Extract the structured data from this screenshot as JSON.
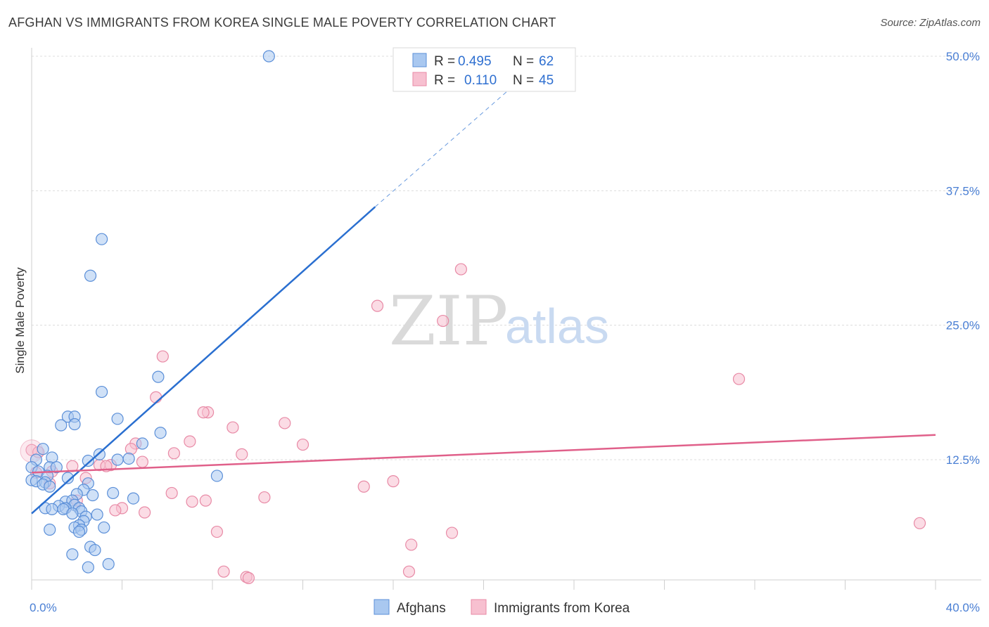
{
  "title": "AFGHAN VS IMMIGRANTS FROM KOREA SINGLE MALE POVERTY CORRELATION CHART",
  "source": "Source: ZipAtlas.com",
  "watermark": {
    "zip": "ZIP",
    "atlas": "atlas"
  },
  "colors": {
    "afghans_fill": "#a9c8f0",
    "afghans_stroke": "#5b8fd8",
    "afghans_line": "#2a6fd0",
    "korea_fill": "#f7c0d0",
    "korea_stroke": "#e88aa6",
    "korea_line": "#e0608a",
    "grid": "#dcdcdc",
    "tick_text": "#4a7fd4"
  },
  "legend": {
    "rows": [
      {
        "r_label": "R =",
        "r_value": "0.495",
        "n_label": "N =",
        "n_value": "62"
      },
      {
        "r_label": "R =",
        "r_value": "0.110",
        "n_label": "N =",
        "n_value": "45"
      }
    ]
  },
  "chart_data": {
    "type": "scatter",
    "title": "AFGHAN VS IMMIGRANTS FROM KOREA SINGLE MALE POVERTY CORRELATION CHART",
    "xlabel": "",
    "ylabel": "Single Male Poverty",
    "xlim": [
      0,
      40
    ],
    "ylim": [
      0,
      52
    ],
    "x_tick_labels": [
      "0.0%",
      "40.0%"
    ],
    "y_ticks": [
      12.5,
      25.0,
      37.5,
      50.0
    ],
    "y_tick_labels": [
      "12.5%",
      "25.0%",
      "37.5%",
      "50.0%"
    ],
    "grid": "horizontal dashed",
    "legend_position": "top-center",
    "series": [
      {
        "name": "Afghans",
        "r": 0.495,
        "n": 62,
        "trend": {
          "x0": 0,
          "y0": 7.5,
          "x1": 15.2,
          "y1": 36.0,
          "dashed_to_x": 22.0,
          "dashed_to_y": 48.5
        },
        "points": [
          [
            10.5,
            50.0
          ],
          [
            3.1,
            33.0
          ],
          [
            2.6,
            29.6
          ],
          [
            5.6,
            20.2
          ],
          [
            3.1,
            18.8
          ],
          [
            1.6,
            16.5
          ],
          [
            1.9,
            16.5
          ],
          [
            1.3,
            15.7
          ],
          [
            1.9,
            15.8
          ],
          [
            3.8,
            16.3
          ],
          [
            5.7,
            15.0
          ],
          [
            4.9,
            14.0
          ],
          [
            0.5,
            13.5
          ],
          [
            3.0,
            13.0
          ],
          [
            0.9,
            12.7
          ],
          [
            2.5,
            12.4
          ],
          [
            3.8,
            12.5
          ],
          [
            0.2,
            12.5
          ],
          [
            4.3,
            12.6
          ],
          [
            0.0,
            11.8
          ],
          [
            0.8,
            11.8
          ],
          [
            1.1,
            11.8
          ],
          [
            0.3,
            11.4
          ],
          [
            0.7,
            11.0
          ],
          [
            1.6,
            10.8
          ],
          [
            0.0,
            10.6
          ],
          [
            0.2,
            10.5
          ],
          [
            0.6,
            10.4
          ],
          [
            0.5,
            10.2
          ],
          [
            0.8,
            10.0
          ],
          [
            2.5,
            10.3
          ],
          [
            2.3,
            9.7
          ],
          [
            8.2,
            11.0
          ],
          [
            3.6,
            9.4
          ],
          [
            2.0,
            9.3
          ],
          [
            2.7,
            9.2
          ],
          [
            4.5,
            8.9
          ],
          [
            1.5,
            8.6
          ],
          [
            1.8,
            8.7
          ],
          [
            1.9,
            8.3
          ],
          [
            1.2,
            8.2
          ],
          [
            1.5,
            8.0
          ],
          [
            0.6,
            8.0
          ],
          [
            0.9,
            7.9
          ],
          [
            1.4,
            7.9
          ],
          [
            2.1,
            8.0
          ],
          [
            2.2,
            7.7
          ],
          [
            1.8,
            7.5
          ],
          [
            2.9,
            7.4
          ],
          [
            2.4,
            7.2
          ],
          [
            2.3,
            6.8
          ],
          [
            2.1,
            6.4
          ],
          [
            3.2,
            6.2
          ],
          [
            0.8,
            6.0
          ],
          [
            1.9,
            6.2
          ],
          [
            2.2,
            6.0
          ],
          [
            2.1,
            5.8
          ],
          [
            2.6,
            4.4
          ],
          [
            1.8,
            3.7
          ],
          [
            3.4,
            2.8
          ],
          [
            2.5,
            2.5
          ],
          [
            2.8,
            4.1
          ]
        ]
      },
      {
        "name": "Immigrants from Korea",
        "r": 0.11,
        "n": 45,
        "trend": {
          "x0": 0,
          "y0": 11.3,
          "x1": 40,
          "y1": 14.8
        },
        "points": [
          [
            0.0,
            13.4
          ],
          [
            19.0,
            30.2
          ],
          [
            15.3,
            26.8
          ],
          [
            18.2,
            25.4
          ],
          [
            5.8,
            22.1
          ],
          [
            31.3,
            20.0
          ],
          [
            5.5,
            18.3
          ],
          [
            7.8,
            16.9
          ],
          [
            7.6,
            16.9
          ],
          [
            11.2,
            15.9
          ],
          [
            8.9,
            15.5
          ],
          [
            7.0,
            14.2
          ],
          [
            12.0,
            13.9
          ],
          [
            4.6,
            14.0
          ],
          [
            4.4,
            13.5
          ],
          [
            0.3,
            13.2
          ],
          [
            6.3,
            13.1
          ],
          [
            9.3,
            13.0
          ],
          [
            4.9,
            12.3
          ],
          [
            3.5,
            12.0
          ],
          [
            3.0,
            12.0
          ],
          [
            3.3,
            11.9
          ],
          [
            1.8,
            11.9
          ],
          [
            0.2,
            11.3
          ],
          [
            0.9,
            11.4
          ],
          [
            2.4,
            10.8
          ],
          [
            0.8,
            10.3
          ],
          [
            16.0,
            10.5
          ],
          [
            14.7,
            10.0
          ],
          [
            6.2,
            9.4
          ],
          [
            10.3,
            9.0
          ],
          [
            7.7,
            8.7
          ],
          [
            7.1,
            8.6
          ],
          [
            2.0,
            8.7
          ],
          [
            4.0,
            8.0
          ],
          [
            3.7,
            7.8
          ],
          [
            5.0,
            7.6
          ],
          [
            8.2,
            5.8
          ],
          [
            18.6,
            5.7
          ],
          [
            39.3,
            6.6
          ],
          [
            16.8,
            4.6
          ],
          [
            8.5,
            2.1
          ],
          [
            9.5,
            1.6
          ],
          [
            9.6,
            1.5
          ],
          [
            16.7,
            2.1
          ]
        ]
      }
    ]
  },
  "bottom_legend": [
    {
      "label": "Afghans"
    },
    {
      "label": "Immigrants from Korea"
    }
  ]
}
